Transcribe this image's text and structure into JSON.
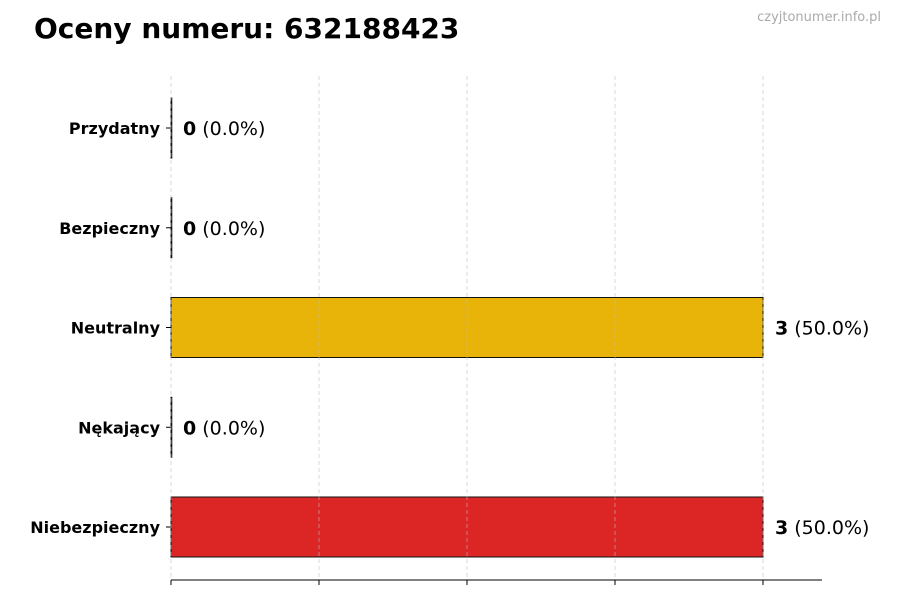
{
  "chart_data": {
    "type": "bar",
    "orientation": "horizontal",
    "title": "Oceny numeru: 632188423",
    "categories": [
      "Przydatny",
      "Bezpieczny",
      "Neutralny",
      "Nękający",
      "Niebezpieczny"
    ],
    "values": [
      0,
      0,
      3,
      0,
      3
    ],
    "percent_labels": [
      "(0.0%)",
      "(0.0%)",
      "(50.0%)",
      "(0.0%)",
      "(50.0%)"
    ],
    "colors": [
      "#2e9e44",
      "#3a7bd5",
      "#e8b409",
      "#e07a1f",
      "#dc2626"
    ],
    "xlim": [
      0,
      3.3
    ],
    "x_gridlines": [
      0,
      0.75,
      1.5,
      2.25,
      3
    ],
    "grid": true,
    "xlabel": "",
    "ylabel": ""
  },
  "watermark": "czyjtonumer.info.pl"
}
